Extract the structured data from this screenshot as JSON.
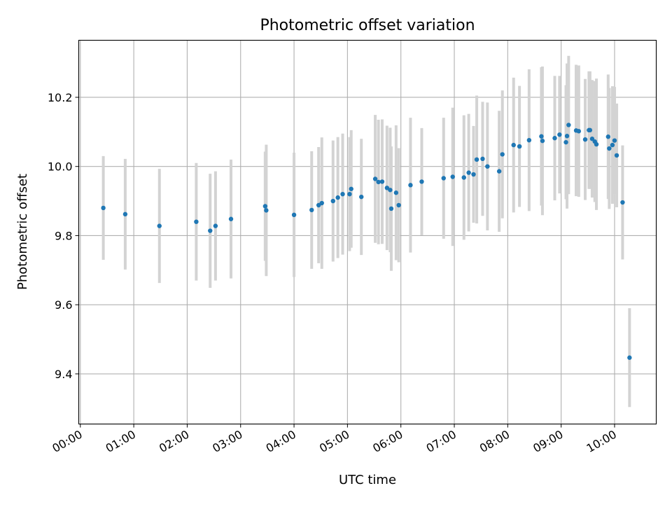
{
  "chart_data": {
    "type": "scatter",
    "title": "Photometric offset variation",
    "xlabel": "UTC time",
    "ylabel": "Photometric offset",
    "xlim": [
      -0.03,
      10.78
    ],
    "ylim": [
      9.255,
      10.365
    ],
    "grid": true,
    "x_ticks": [
      {
        "value": 0,
        "label": "00:00"
      },
      {
        "value": 1,
        "label": "01:00"
      },
      {
        "value": 2,
        "label": "02:00"
      },
      {
        "value": 3,
        "label": "03:00"
      },
      {
        "value": 4,
        "label": "04:00"
      },
      {
        "value": 5,
        "label": "05:00"
      },
      {
        "value": 6,
        "label": "06:00"
      },
      {
        "value": 7,
        "label": "07:00"
      },
      {
        "value": 8,
        "label": "08:00"
      },
      {
        "value": 9,
        "label": "09:00"
      },
      {
        "value": 10,
        "label": "10:00"
      }
    ],
    "y_ticks": [
      {
        "value": 9.4,
        "label": "9.4"
      },
      {
        "value": 9.6,
        "label": "9.6"
      },
      {
        "value": 9.8,
        "label": "9.8"
      },
      {
        "value": 10.0,
        "label": "10.0"
      },
      {
        "value": 10.2,
        "label": "10.2"
      }
    ],
    "colors": {
      "point": "#1f77b4",
      "errorbar": "#d3d3d3",
      "grid": "#b0b0b0"
    },
    "series": [
      {
        "name": "offset",
        "x": [
          0.43,
          0.84,
          1.48,
          2.17,
          2.43,
          2.53,
          2.82,
          3.46,
          3.48,
          4.0,
          4.33,
          4.46,
          4.52,
          4.73,
          4.82,
          4.91,
          5.04,
          5.07,
          5.26,
          5.52,
          5.58,
          5.65,
          5.74,
          5.8,
          5.82,
          5.91,
          5.96,
          6.18,
          6.39,
          6.8,
          6.97,
          7.18,
          7.27,
          7.36,
          7.42,
          7.53,
          7.62,
          7.84,
          7.9,
          8.11,
          8.22,
          8.4,
          8.63,
          8.65,
          8.88,
          8.97,
          9.09,
          9.11,
          9.14,
          9.28,
          9.33,
          9.45,
          9.52,
          9.54,
          9.58,
          9.63,
          9.66,
          9.88,
          9.9,
          9.96,
          10.0,
          10.04,
          10.15,
          10.28
        ],
        "y": [
          9.88,
          9.862,
          9.828,
          9.84,
          9.814,
          9.828,
          9.848,
          9.885,
          9.873,
          9.86,
          9.874,
          9.888,
          9.894,
          9.9,
          9.91,
          9.92,
          9.92,
          9.935,
          9.912,
          9.964,
          9.955,
          9.956,
          9.938,
          9.932,
          9.878,
          9.924,
          9.888,
          9.946,
          9.956,
          9.966,
          9.97,
          9.968,
          9.982,
          9.977,
          10.02,
          10.022,
          10.0,
          9.986,
          10.035,
          10.062,
          10.058,
          10.076,
          10.087,
          10.074,
          10.082,
          10.092,
          10.07,
          10.088,
          10.12,
          10.104,
          10.102,
          10.078,
          10.105,
          10.105,
          10.08,
          10.072,
          10.064,
          10.086,
          10.052,
          10.062,
          10.075,
          10.032,
          9.896,
          9.447
        ],
        "err": [
          0.15,
          0.16,
          0.165,
          0.17,
          0.165,
          0.158,
          0.172,
          0.158,
          0.19,
          0.18,
          0.17,
          0.168,
          0.19,
          0.175,
          0.175,
          0.175,
          0.165,
          0.17,
          0.168,
          0.185,
          0.18,
          0.18,
          0.18,
          0.18,
          0.18,
          0.195,
          0.165,
          0.195,
          0.155,
          0.175,
          0.2,
          0.18,
          0.17,
          0.14,
          0.185,
          0.165,
          0.185,
          0.175,
          0.185,
          0.195,
          0.175,
          0.205,
          0.2,
          0.215,
          0.18,
          0.17,
          0.165,
          0.21,
          0.2,
          0.19,
          0.19,
          0.175,
          0.17,
          0.17,
          0.17,
          0.175,
          0.19,
          0.18,
          0.175,
          0.17,
          0.155,
          0.15,
          0.165,
          0.143
        ]
      }
    ]
  }
}
